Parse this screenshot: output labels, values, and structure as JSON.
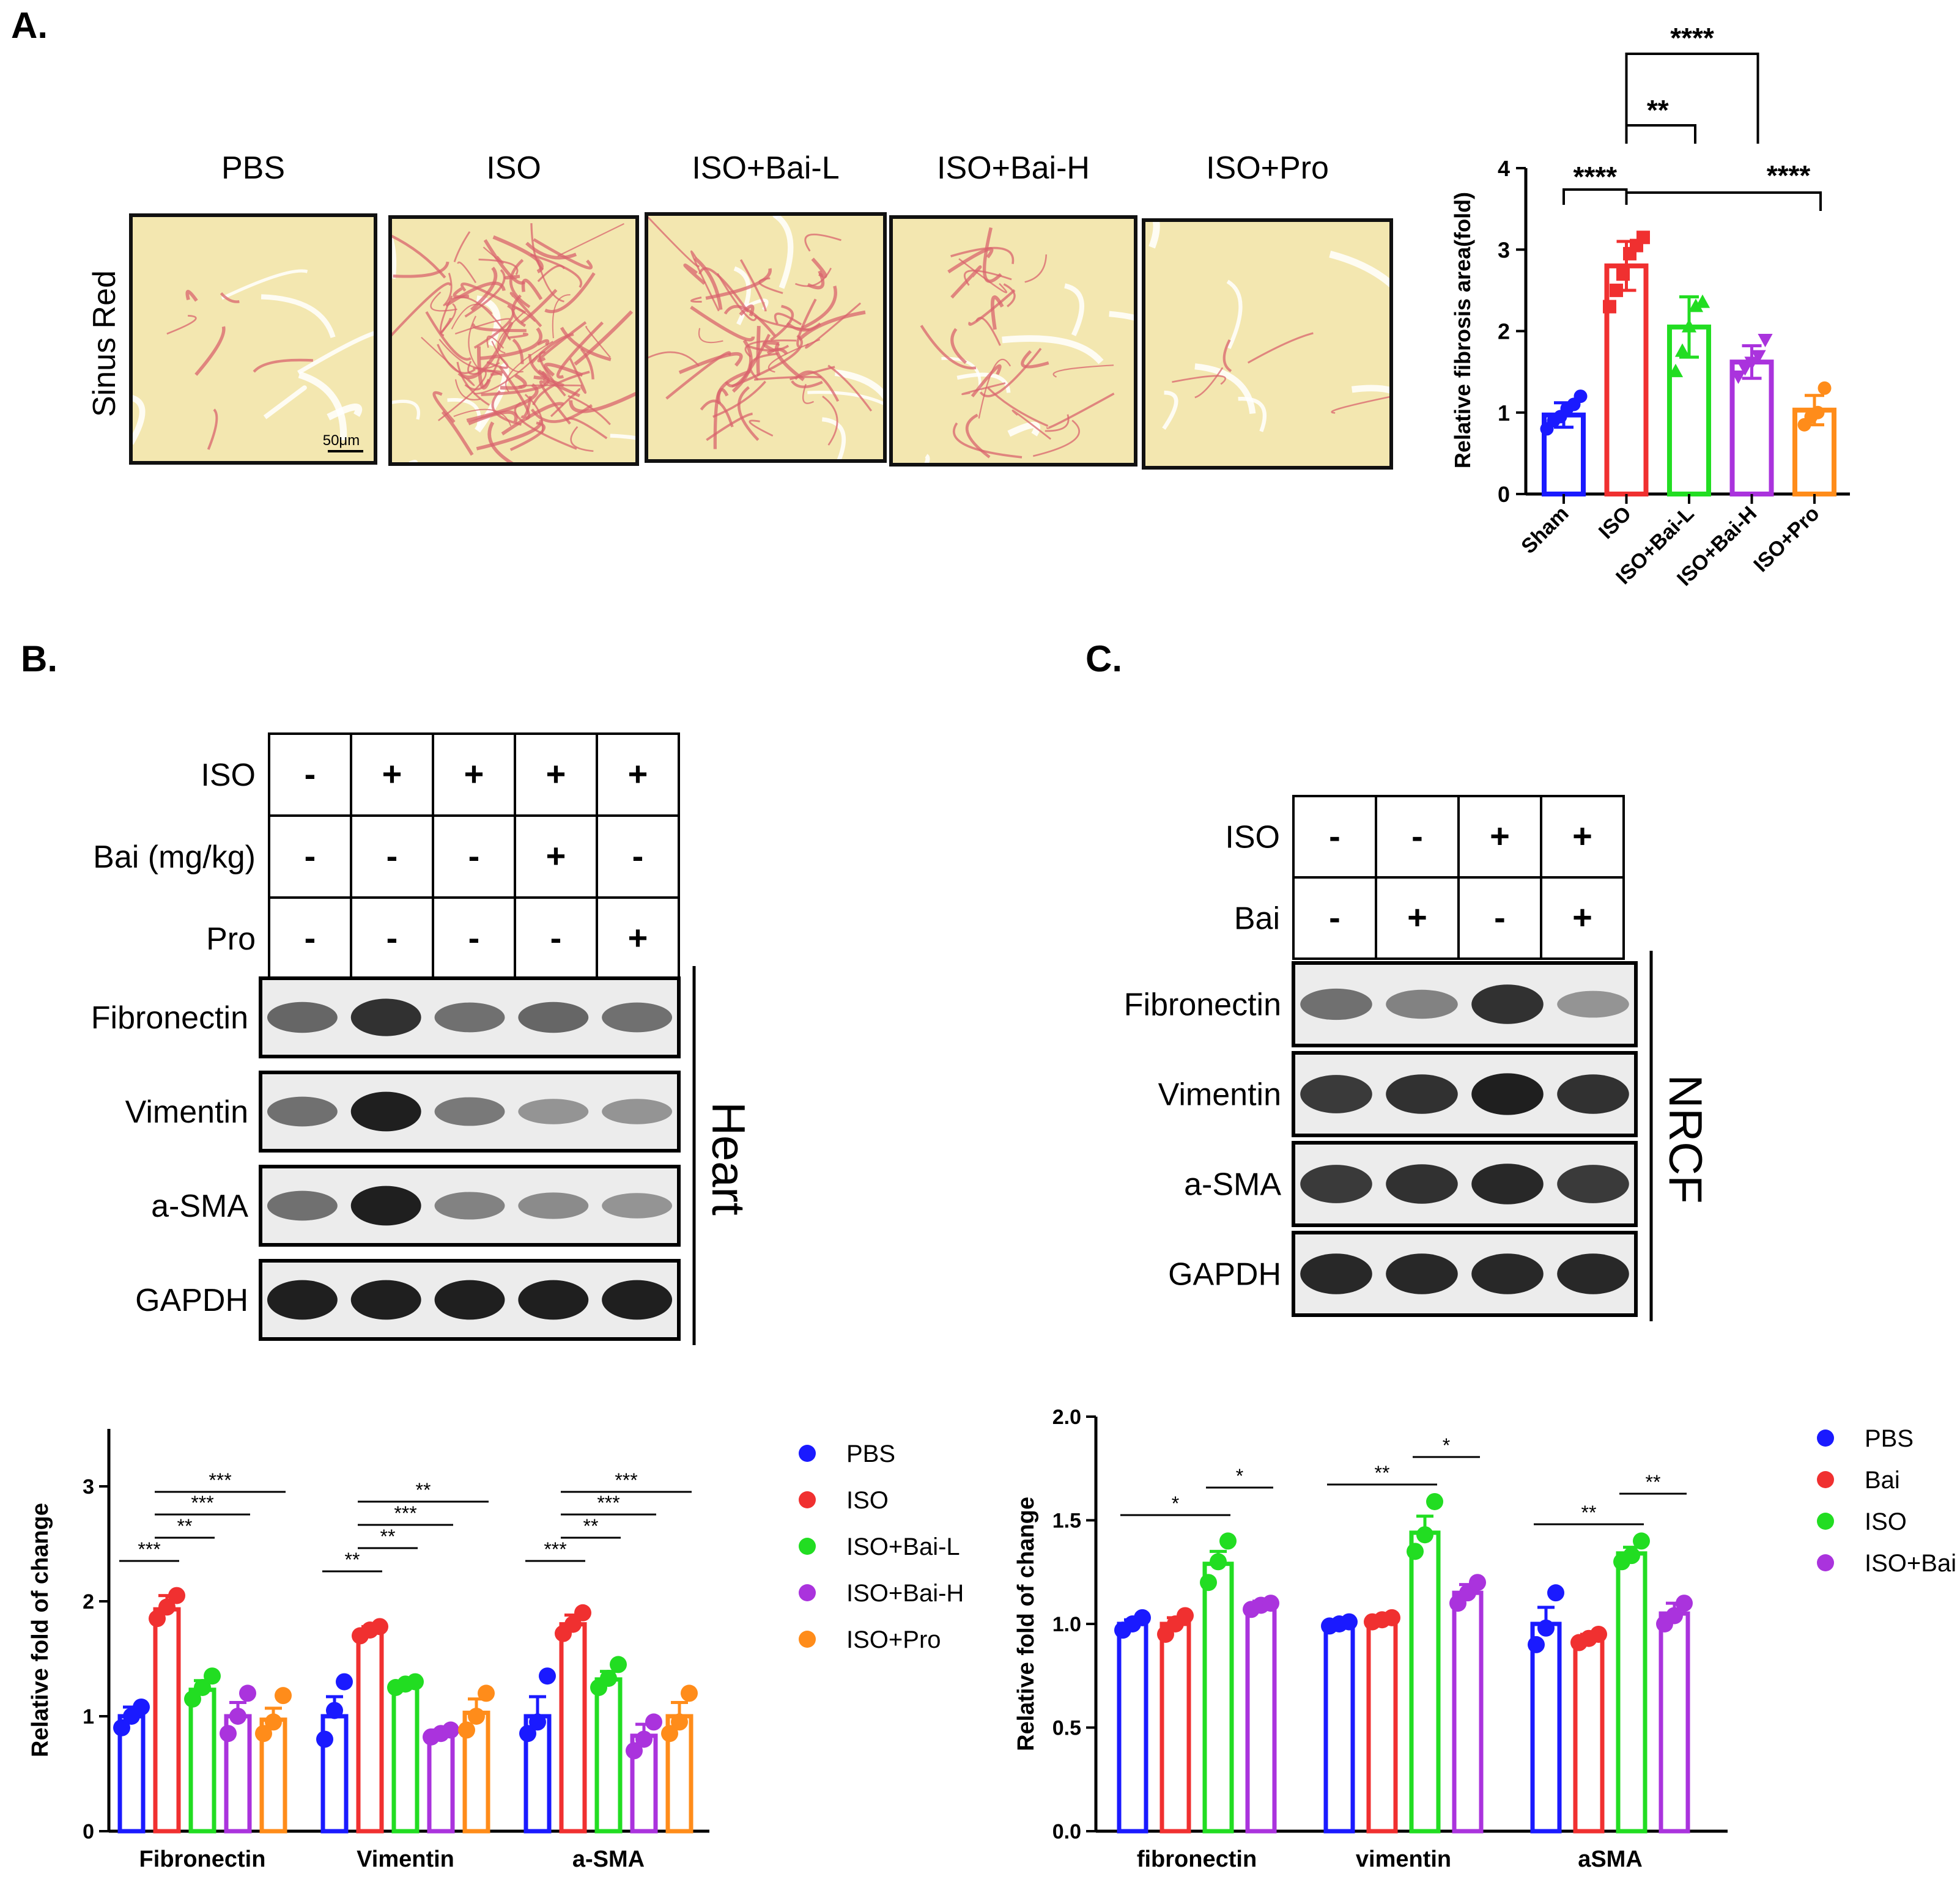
{
  "figure": {
    "panels": {
      "a": {
        "label": "A.",
        "stain_label": "Sinus Red",
        "scale_bar": "50μm",
        "groups": [
          "PBS",
          "ISO",
          "ISO+Bai-L",
          "ISO+Bai-H",
          "ISO+Pro"
        ]
      },
      "b": {
        "label": "B.",
        "tissue": "Heart",
        "treatment_rows": [
          {
            "label": "ISO",
            "marks": [
              "-",
              "+",
              "+",
              "+",
              "+"
            ]
          },
          {
            "label": "Bai (mg/kg)",
            "marks": [
              "-",
              "-",
              "-",
              "+",
              "-"
            ]
          },
          {
            "label": "Pro",
            "marks": [
              "-",
              "-",
              "-",
              "-",
              "+"
            ]
          }
        ],
        "blot_rows": [
          "Fibronectin",
          "Vimentin",
          "a-SMA",
          "GAPDH"
        ],
        "band_intensity": [
          [
            0.55,
            0.85,
            0.5,
            0.55,
            0.5
          ],
          [
            0.5,
            0.95,
            0.45,
            0.3,
            0.3
          ],
          [
            0.5,
            0.95,
            0.4,
            0.35,
            0.3
          ],
          [
            0.95,
            0.95,
            0.95,
            0.95,
            0.95
          ]
        ]
      },
      "c": {
        "label": "C.",
        "tissue": "NRCF",
        "treatment_rows": [
          {
            "label": "ISO",
            "marks": [
              "-",
              "-",
              "+",
              "+"
            ]
          },
          {
            "label": "Bai",
            "marks": [
              "-",
              "+",
              "-",
              "+"
            ]
          }
        ],
        "blot_rows": [
          "Fibronectin",
          "Vimentin",
          "a-SMA",
          "GAPDH"
        ],
        "band_intensity": [
          [
            0.5,
            0.4,
            0.85,
            0.3
          ],
          [
            0.8,
            0.85,
            0.95,
            0.85
          ],
          [
            0.8,
            0.85,
            0.9,
            0.8
          ],
          [
            0.9,
            0.9,
            0.9,
            0.9
          ]
        ]
      }
    }
  },
  "colors": {
    "blue": "#1a1aff",
    "red": "#f03030",
    "green": "#22dd22",
    "purple": "#aa33dd",
    "orange": "#ff8c1a",
    "tissue_base": "#f3e7b0",
    "fibrosis": "#d9646e"
  },
  "chart_data": [
    {
      "id": "A",
      "type": "bar",
      "ylabel": "Relative fibrosis area(fold)",
      "ylim": [
        0,
        4
      ],
      "yticks": [
        "0",
        "1",
        "2",
        "3",
        "4"
      ],
      "categories": [
        "Sham",
        "ISO",
        "ISO+Bai-L",
        "ISO+Bai-H",
        "ISO+Pro"
      ],
      "values": [
        0.97,
        2.8,
        2.05,
        1.62,
        1.03
      ],
      "errors": [
        0.15,
        0.3,
        0.37,
        0.2,
        0.18
      ],
      "points": [
        [
          0.8,
          0.9,
          0.95,
          1.05,
          1.1,
          1.2
        ],
        [
          2.3,
          2.5,
          2.7,
          2.95,
          3.05,
          3.15
        ],
        [
          1.5,
          1.75,
          2.05,
          2.3,
          2.35
        ],
        [
          1.45,
          1.55,
          1.62,
          1.7,
          1.9
        ],
        [
          0.85,
          0.95,
          1.0,
          1.3
        ]
      ],
      "markers": [
        "circle",
        "square",
        "triangle",
        "triangle-down",
        "circle"
      ],
      "significance": [
        {
          "label": "****",
          "from": 0,
          "to": 1
        },
        {
          "label": "**",
          "from": 1,
          "to": 2
        },
        {
          "label": "****",
          "from": 1,
          "to": 3
        },
        {
          "label": "****",
          "from": 1,
          "to": 4
        }
      ]
    },
    {
      "id": "B",
      "type": "bar",
      "ylabel": "Relative fold of change",
      "ylim": [
        0,
        3.5
      ],
      "yticks": [
        "0",
        "1",
        "2",
        "3"
      ],
      "categories": [
        "Fibronectin",
        "Vimentin",
        "a-SMA"
      ],
      "series": [
        {
          "name": "PBS",
          "values": [
            1.0,
            1.0,
            1.0
          ],
          "errors": [
            0.08,
            0.17,
            0.17
          ],
          "points": [
            [
              0.9,
              1.0,
              1.08
            ],
            [
              0.8,
              1.05,
              1.3
            ],
            [
              0.85,
              0.95,
              1.35
            ]
          ]
        },
        {
          "name": "ISO",
          "values": [
            1.93,
            1.73,
            1.8
          ],
          "errors": [
            0.12,
            0.05,
            0.08
          ],
          "points": [
            [
              1.85,
              1.95,
              2.05
            ],
            [
              1.7,
              1.75,
              1.78
            ],
            [
              1.72,
              1.8,
              1.9
            ]
          ]
        },
        {
          "name": "ISO+Bai-L",
          "values": [
            1.23,
            1.27,
            1.32
          ],
          "errors": [
            0.08,
            0.03,
            0.07
          ],
          "points": [
            [
              1.15,
              1.25,
              1.35
            ],
            [
              1.25,
              1.28,
              1.3
            ],
            [
              1.25,
              1.33,
              1.45
            ]
          ]
        },
        {
          "name": "ISO+Bai-H",
          "values": [
            1.0,
            0.85,
            0.83
          ],
          "errors": [
            0.12,
            0.03,
            0.1
          ],
          "points": [
            [
              0.85,
              1.0,
              1.2
            ],
            [
              0.82,
              0.85,
              0.88
            ],
            [
              0.7,
              0.8,
              0.95
            ]
          ]
        },
        {
          "name": "ISO+Pro",
          "values": [
            0.97,
            1.03,
            1.0
          ],
          "errors": [
            0.1,
            0.12,
            0.12
          ],
          "points": [
            [
              0.85,
              0.95,
              1.18
            ],
            [
              0.88,
              1.0,
              1.2
            ],
            [
              0.85,
              0.95,
              1.2
            ]
          ]
        }
      ],
      "significance": [
        {
          "label": "***",
          "group": 0,
          "from": 0,
          "to": 1
        },
        {
          "label": "**",
          "group": 0,
          "from": 1,
          "to": 2
        },
        {
          "label": "***",
          "group": 0,
          "from": 1,
          "to": 3
        },
        {
          "label": "***",
          "group": 0,
          "from": 1,
          "to": 4
        },
        {
          "label": "**",
          "group": 1,
          "from": 0,
          "to": 1
        },
        {
          "label": "**",
          "group": 1,
          "from": 1,
          "to": 2
        },
        {
          "label": "***",
          "group": 1,
          "from": 1,
          "to": 3
        },
        {
          "label": "**",
          "group": 1,
          "from": 1,
          "to": 4
        },
        {
          "label": "***",
          "group": 2,
          "from": 0,
          "to": 1
        },
        {
          "label": "**",
          "group": 2,
          "from": 1,
          "to": 2
        },
        {
          "label": "***",
          "group": 2,
          "from": 1,
          "to": 3
        },
        {
          "label": "***",
          "group": 2,
          "from": 1,
          "to": 4
        }
      ],
      "legend": [
        "PBS",
        "ISO",
        "ISO+Bai-L",
        "ISO+Bai-H",
        "ISO+Pro"
      ]
    },
    {
      "id": "C",
      "type": "bar",
      "ylabel": "Relative fold of change",
      "ylim": [
        0,
        2.0
      ],
      "yticks": [
        "0.0",
        "0.5",
        "1.0",
        "1.5",
        "2.0"
      ],
      "categories": [
        "fibronectin",
        "vimentin",
        "aSMA"
      ],
      "series": [
        {
          "name": "PBS",
          "values": [
            1.0,
            1.0,
            1.0
          ],
          "errors": [
            0.02,
            0.01,
            0.08
          ],
          "points": [
            [
              0.97,
              1.0,
              1.03
            ],
            [
              0.99,
              1.0,
              1.01
            ],
            [
              0.9,
              0.98,
              1.15
            ]
          ]
        },
        {
          "name": "Bai",
          "values": [
            1.0,
            1.02,
            0.93
          ],
          "errors": [
            0.03,
            0.01,
            0.02
          ],
          "points": [
            [
              0.95,
              1.0,
              1.04
            ],
            [
              1.01,
              1.02,
              1.03
            ],
            [
              0.91,
              0.93,
              0.95
            ]
          ]
        },
        {
          "name": "ISO",
          "values": [
            1.29,
            1.44,
            1.34
          ],
          "errors": [
            0.06,
            0.08,
            0.03
          ],
          "points": [
            [
              1.2,
              1.3,
              1.4
            ],
            [
              1.35,
              1.43,
              1.59
            ],
            [
              1.3,
              1.33,
              1.4
            ]
          ]
        },
        {
          "name": "ISO+Bai",
          "values": [
            1.09,
            1.15,
            1.05
          ],
          "errors": [
            0.02,
            0.04,
            0.05
          ],
          "points": [
            [
              1.07,
              1.09,
              1.1
            ],
            [
              1.1,
              1.15,
              1.2
            ],
            [
              1.0,
              1.04,
              1.1
            ]
          ]
        }
      ],
      "significance": [
        {
          "label": "*",
          "group": 0,
          "from": 0,
          "to": 2
        },
        {
          "label": "*",
          "group": 0,
          "from": 2,
          "to": 3
        },
        {
          "label": "**",
          "group": 1,
          "from": 0,
          "to": 2
        },
        {
          "label": "*",
          "group": 1,
          "from": 2,
          "to": 3
        },
        {
          "label": "**",
          "group": 2,
          "from": 0,
          "to": 2
        },
        {
          "label": "**",
          "group": 2,
          "from": 2,
          "to": 3
        }
      ],
      "legend": [
        "PBS",
        "Bai",
        "ISO",
        "ISO+Bai"
      ]
    }
  ]
}
